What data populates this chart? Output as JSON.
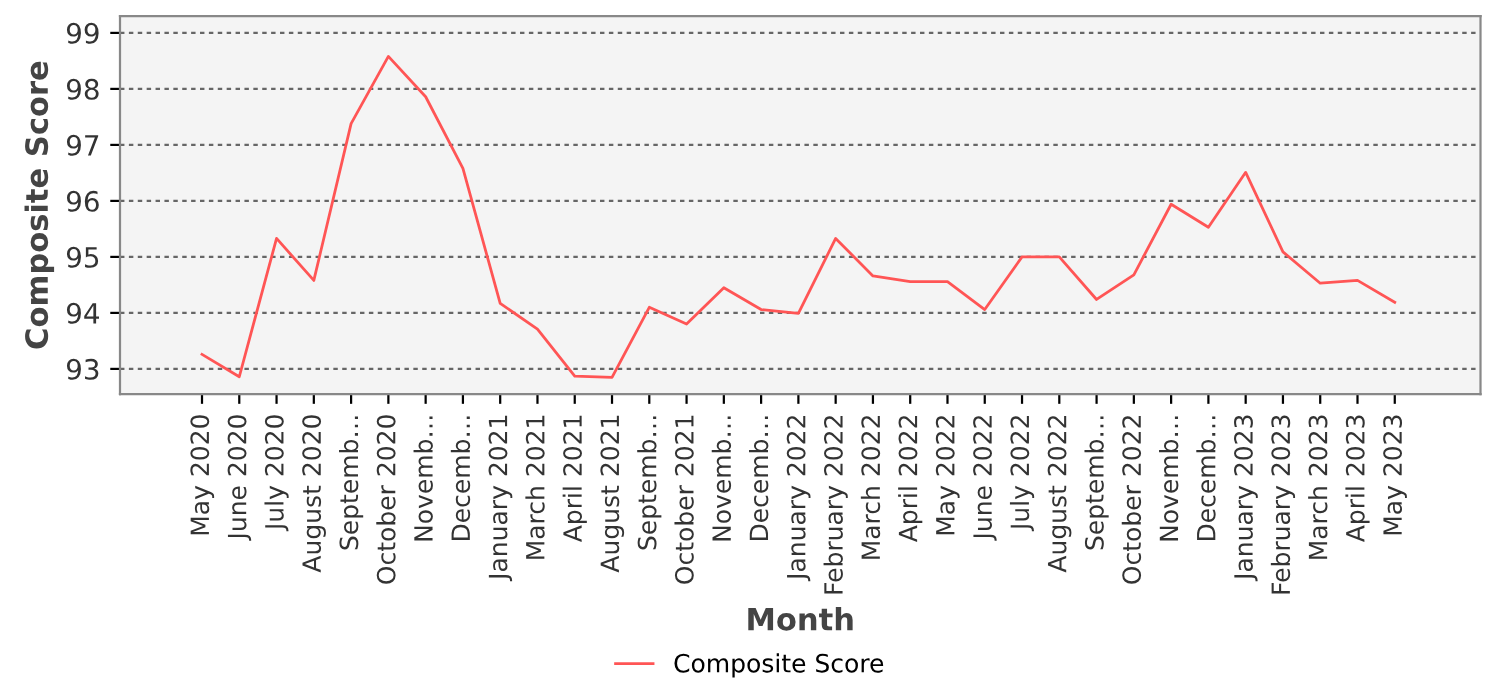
{
  "chart_data": {
    "type": "line",
    "xlabel": "Month",
    "ylabel": "Composite Score",
    "categories": [
      "May 2020",
      "June 2020",
      "July 2020",
      "August 2020",
      "Septemb…",
      "October 2020",
      "Novemb…",
      "Decemb…",
      "January 2021",
      "March 2021",
      "April 2021",
      "August 2021",
      "Septemb…",
      "October 2021",
      "Novemb…",
      "Decemb…",
      "January 2022",
      "February 2022",
      "March 2022",
      "April 2022",
      "May 2022",
      "June 2022",
      "July 2022",
      "August 2022",
      "Septemb…",
      "October 2022",
      "Novemb…",
      "Decemb…",
      "January 2023",
      "February 2023",
      "March 2023",
      "April 2023",
      "May 2023"
    ],
    "series": [
      {
        "name": "Composite Score",
        "color": "#ff5555",
        "values": [
          93.26,
          92.86,
          95.33,
          94.58,
          97.38,
          98.58,
          97.86,
          96.58,
          94.17,
          93.71,
          92.87,
          92.85,
          94.1,
          93.8,
          94.45,
          94.06,
          93.99,
          95.33,
          94.66,
          94.56,
          94.56,
          94.06,
          95.0,
          95.0,
          94.24,
          94.68,
          95.94,
          95.53,
          96.51,
          95.09,
          94.53,
          94.58,
          94.19
        ]
      }
    ],
    "ylim": [
      92.55,
      99.3
    ],
    "yticks": [
      93,
      94,
      95,
      96,
      97,
      98,
      99
    ],
    "grid": "y",
    "legend": "bottom",
    "marker": "none",
    "line_style": "solid"
  }
}
